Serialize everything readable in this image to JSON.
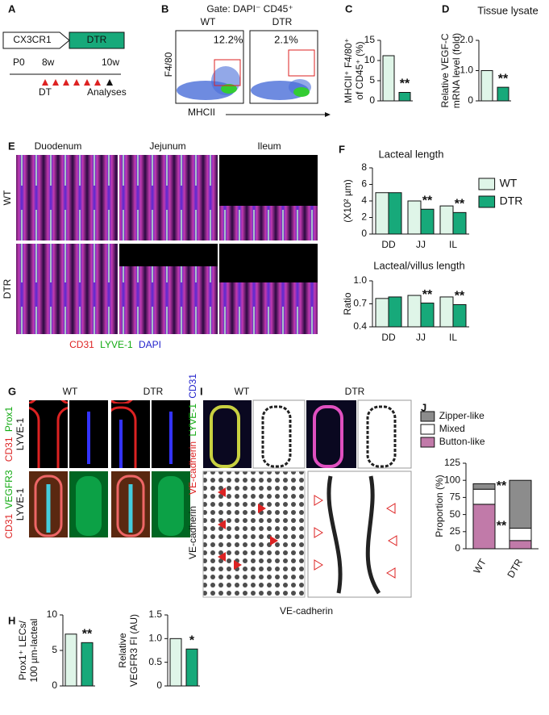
{
  "panels": {
    "A": {
      "letter": "A",
      "construct": [
        "CX3CR1",
        "DTR"
      ],
      "timeline": [
        "P0",
        "8w",
        "10w"
      ],
      "treatment": "DT",
      "readout": "Analyses"
    },
    "B": {
      "letter": "B",
      "gate": "Gate: DAPI⁻ CD45⁺",
      "groups": [
        "WT",
        "DTR"
      ],
      "percentages": [
        "12.2%",
        "2.1%"
      ],
      "y_label": "F4/80",
      "x_label": "MHCII"
    },
    "E": {
      "letter": "E",
      "columns": [
        "Duodenum",
        "Jejunum",
        "Ileum"
      ],
      "rows": [
        "WT",
        "DTR"
      ],
      "stain": [
        "CD31",
        "LYVE-1",
        "DAPI"
      ]
    },
    "G": {
      "letter": "G",
      "columns": [
        "WT",
        "DTR"
      ],
      "stain_top": [
        "CD31",
        "Prox1",
        "LYVE-1"
      ],
      "stain_bottom": [
        "CD31",
        "VEGFR3",
        "LYVE-1"
      ]
    },
    "I": {
      "letter": "I",
      "columns": [
        "WT",
        "DTR"
      ],
      "stain_top": [
        "VE-cadherin",
        "LYVE-1",
        "CD31"
      ],
      "stain_bottom": "VE-cadherin",
      "x_caption": "VE-cadherin"
    }
  },
  "chart_data": [
    {
      "letter": "C",
      "type": "bar",
      "ylabel": [
        "MHCII⁺ F4/80⁺",
        "of CD45⁺ (%)"
      ],
      "values": [
        11.2,
        2.1
      ],
      "colors": [
        "#dff5e8",
        "#17a97a"
      ],
      "annotations": [
        null,
        "**"
      ],
      "ylim": [
        0,
        15
      ],
      "yticks": [
        0,
        5,
        10,
        15
      ]
    },
    {
      "letter": "D",
      "type": "bar",
      "title": "Tissue lysate",
      "ylabel": [
        "Relative VEGF-C",
        "mRNA level (fold)"
      ],
      "values": [
        1.0,
        0.45
      ],
      "colors": [
        "#dff5e8",
        "#17a97a"
      ],
      "annotations": [
        null,
        "**"
      ],
      "ylim": [
        0,
        2
      ],
      "yticks": [
        0,
        {
          "value": 1,
          "label": "1.0"
        },
        {
          "value": 2,
          "label": "2.0"
        }
      ]
    },
    {
      "letter": "F",
      "type": "bar",
      "title": "Lacteal length",
      "ylabel": [
        "(X10² µm)"
      ],
      "categories": [
        "DD",
        "JJ",
        "IL"
      ],
      "series": [
        {
          "name": "WT",
          "color": "#dff5e8",
          "values": [
            5.0,
            4.0,
            3.4
          ]
        },
        {
          "name": "DTR",
          "color": "#17a97a",
          "values": [
            5.0,
            3.0,
            2.6
          ],
          "annotations": [
            null,
            "**",
            "**"
          ]
        }
      ],
      "ylim": [
        0,
        8
      ],
      "yticks": [
        0,
        2,
        4,
        6,
        8
      ],
      "legend": "right"
    },
    {
      "type": "bar",
      "title": "Lacteal/villus length",
      "ylabel": [
        "Ratio"
      ],
      "categories": [
        "DD",
        "JJ",
        "IL"
      ],
      "series": [
        {
          "color": "#dff5e8",
          "values": [
            0.77,
            0.81,
            0.79
          ]
        },
        {
          "color": "#17a97a",
          "values": [
            0.79,
            0.71,
            0.69
          ],
          "annotations": [
            null,
            "**",
            "**"
          ]
        }
      ],
      "ylim": [
        0.4,
        1
      ],
      "yticks": [
        0.4,
        0.7,
        {
          "value": 1,
          "label": "1.0"
        }
      ]
    },
    {
      "letter": "J",
      "type": "bar",
      "stacked": true,
      "ylabel": [
        "Proportion (%)"
      ],
      "categories": [
        "WT",
        "DTR"
      ],
      "series": [
        {
          "name": "Button-like",
          "color": "#c17aa9",
          "values": [
            65,
            12
          ],
          "annotations": [
            "**",
            null
          ]
        },
        {
          "name": "Mixed",
          "color": "#ffffff",
          "values": [
            22,
            18
          ]
        },
        {
          "name": "Zipper-like",
          "color": "#8c8c8c",
          "values": [
            8,
            70
          ],
          "annotations": [
            "**",
            null
          ]
        }
      ],
      "ylim": [
        0,
        125
      ],
      "yticks": [
        0,
        25,
        50,
        75,
        100,
        125
      ],
      "legend": "top"
    },
    {
      "letter": "H",
      "type": "bar",
      "ylabel": [
        "Prox1⁺ LECs/",
        "100 µm-lacteal"
      ],
      "values": [
        7.3,
        6.1
      ],
      "colors": [
        "#dff5e8",
        "#17a97a"
      ],
      "annotations": [
        null,
        "**"
      ],
      "ylim": [
        0,
        10
      ],
      "yticks": [
        0,
        5,
        10
      ]
    },
    {
      "type": "bar",
      "ylabel": [
        "Relative",
        "VEGFR3 FI (AU)"
      ],
      "values": [
        1.0,
        0.78
      ],
      "colors": [
        "#dff5e8",
        "#17a97a"
      ],
      "annotations": [
        null,
        "*"
      ],
      "ylim": [
        0,
        1.5
      ],
      "yticks": [
        0,
        0.5,
        {
          "value": 1,
          "label": "1.0"
        },
        1.5
      ]
    }
  ]
}
